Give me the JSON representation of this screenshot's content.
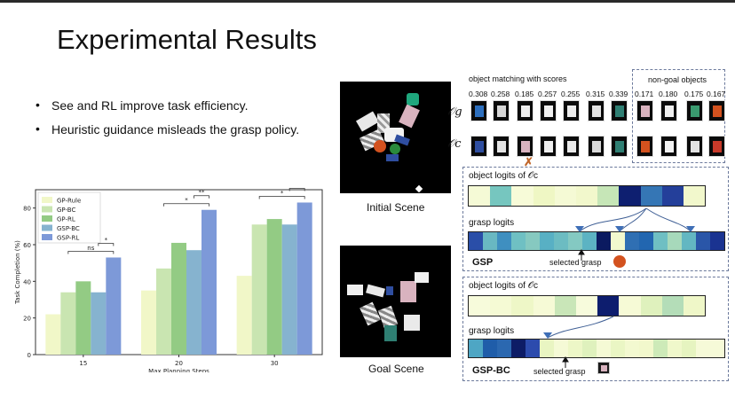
{
  "slide": {
    "title": "Experimental Results"
  },
  "bullets": [
    "See and RL improve task efficiency.",
    "Heuristic guidance misleads the grasp policy."
  ],
  "chart_data": {
    "type": "bar",
    "categories": [
      "15",
      "20",
      "30"
    ],
    "xlabel": "Max Planning Steps",
    "ylabel": "Task Completion (%)",
    "ylim": [
      0,
      90
    ],
    "yticks": [
      0,
      20,
      40,
      60,
      80
    ],
    "legend_position": "top-left",
    "series": [
      {
        "name": "GP-Rule",
        "color": "#f1f7c8",
        "values": [
          22,
          35,
          43
        ]
      },
      {
        "name": "GP-BC",
        "color": "#c9e5b1",
        "values": [
          34,
          47,
          71
        ]
      },
      {
        "name": "GP-RL",
        "color": "#93cb84",
        "values": [
          40,
          61,
          74
        ]
      },
      {
        "name": "GSP-BC",
        "color": "#86b3cf",
        "values": [
          34,
          57,
          71
        ]
      },
      {
        "name": "GSP-RL",
        "color": "#7d99d8",
        "values": [
          53,
          79,
          83
        ]
      }
    ],
    "significance": [
      {
        "group": 0,
        "from": 1,
        "to": 4,
        "label": "ns",
        "level": 0
      },
      {
        "group": 0,
        "from": 3,
        "to": 4,
        "label": "*",
        "level": 1
      },
      {
        "group": 1,
        "from": 1,
        "to": 4,
        "label": "*",
        "level": 0
      },
      {
        "group": 1,
        "from": 3,
        "to": 4,
        "label": "**",
        "level": 1
      },
      {
        "group": 2,
        "from": 1,
        "to": 4,
        "label": "*",
        "level": 0
      },
      {
        "group": 2,
        "from": 3,
        "to": 4,
        "label": "*",
        "level": 1
      }
    ]
  },
  "scenes": {
    "initial_label": "Initial Scene",
    "goal_label": "Goal Scene"
  },
  "matching": {
    "title": "object matching with scores",
    "non_goal_title": "non-goal objects",
    "og_label": "𝒪g",
    "oc_label": "𝒪c",
    "scores": [
      "0.308",
      "0.258",
      "0.185",
      "0.257",
      "0.255",
      "0.315",
      "0.339",
      "0.171",
      "0.180",
      "0.175",
      "0.167"
    ],
    "mismatch_mark": "✗"
  },
  "gsp": {
    "object_logits_title": "object logits of 𝒪c",
    "grasp_logits_title": "grasp logits",
    "method": "GSP",
    "selected": "selected grasp",
    "object_logits": [
      "#f5fad6",
      "#76c6bf",
      "#f7fbd8",
      "#eff7c4",
      "#f5fad5",
      "#f2f8cc",
      "#c6e6b7",
      "#0e1f70",
      "#3576b5",
      "#243f9a",
      "#f2f8cc"
    ],
    "grasp_logits": [
      "#2a4ea8",
      "#69b8c2",
      "#3f8fc0",
      "#6fc0c3",
      "#86c9c0",
      "#58b0c4",
      "#6cbcc2",
      "#84c9c2",
      "#5cb3c3",
      "#0b1a60",
      "#f2f8ce",
      "#2f6fb3",
      "#2266b0",
      "#6fbfc3",
      "#a7d9bb",
      "#63b7c2",
      "#2a56a8",
      "#1a3391"
    ]
  },
  "gspbc": {
    "object_logits_title": "object logits of 𝒪c",
    "grasp_logits_title": "grasp logits",
    "method": "GSP-BC",
    "selected": "selected grasp",
    "object_logits": [
      "#f7fbdb",
      "#f5fad4",
      "#eef7c7",
      "#f6fad6",
      "#c9e6b8",
      "#f7fbdc",
      "#0d1d6e",
      "#f6fad6",
      "#dff1bd",
      "#b4ddb8",
      "#eff7c8"
    ],
    "grasp_logits": [
      "#4ea6c4",
      "#1f5da9",
      "#2b68b0",
      "#0d1c66",
      "#2c4bad",
      "#e9f5c2",
      "#f5fad6",
      "#edf7c7",
      "#dff1bd",
      "#f5fad5",
      "#eaf6c4",
      "#f3f9d0",
      "#f2f8cc",
      "#cdeab8",
      "#f0f8cb",
      "#e6f4c0",
      "#f6fad8",
      "#f6fad8"
    ]
  }
}
